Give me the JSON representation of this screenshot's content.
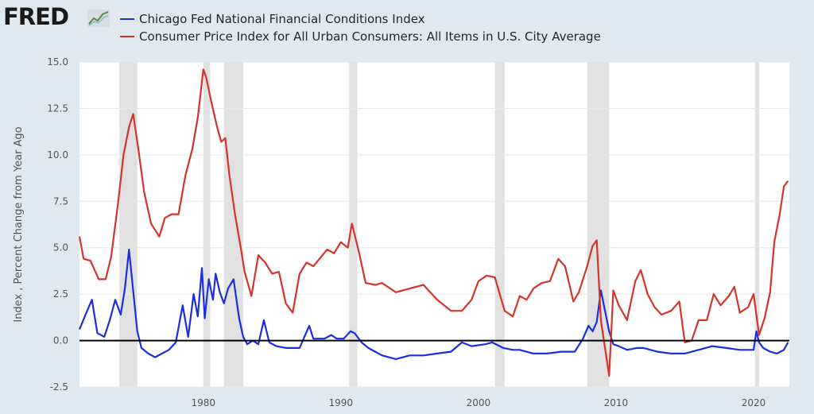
{
  "brand": {
    "logo_text": "FRED",
    "logo_mark_icon": "trend-chart-icon"
  },
  "colors": {
    "background": "#e1e9f0",
    "plot_background": "#ffffff",
    "recession_band": "#e1e1e1",
    "series_1": "#1b2fe0",
    "series_2": "#d4342a",
    "zero_line": "#000000"
  },
  "chart_data": {
    "type": "line",
    "title": "",
    "xlabel": "",
    "ylabel": "Index , Percent Change from Year Ago",
    "xlim": [
      1971,
      2022.6
    ],
    "ylim": [
      -2.5,
      15.0
    ],
    "y_ticks": [
      "15.0",
      "12.5",
      "10.0",
      "7.5",
      "5.0",
      "2.5",
      "0.0",
      "-2.5"
    ],
    "y_tick_values": [
      15,
      12.5,
      10,
      7.5,
      5,
      2.5,
      0,
      -2.5
    ],
    "x_ticks": [
      "1980",
      "1990",
      "2000",
      "2010",
      "2020"
    ],
    "x_tick_values": [
      1980,
      1990,
      2000,
      2010,
      2020
    ],
    "grid": "horizontal",
    "legend": "top-left",
    "reference_line": 0,
    "recessions": [
      [
        1973.9,
        1975.2
      ],
      [
        1980.0,
        1980.5
      ],
      [
        1981.5,
        1982.9
      ],
      [
        1990.6,
        1991.2
      ],
      [
        2001.2,
        2001.9
      ],
      [
        2007.9,
        2009.5
      ],
      [
        2020.1,
        2020.4
      ]
    ],
    "series": [
      {
        "name": "Chicago Fed National Financial Conditions Index",
        "color": "#1b2fe0",
        "x": [
          1971.0,
          1971.5,
          1971.9,
          1972.3,
          1972.8,
          1973.2,
          1973.6,
          1974.0,
          1974.3,
          1974.6,
          1974.9,
          1975.2,
          1975.5,
          1976.0,
          1976.5,
          1977.0,
          1977.5,
          1978.0,
          1978.5,
          1978.9,
          1979.3,
          1979.6,
          1979.9,
          1980.1,
          1980.4,
          1980.7,
          1980.9,
          1981.2,
          1981.5,
          1981.8,
          1982.2,
          1982.6,
          1982.9,
          1983.2,
          1983.6,
          1984.0,
          1984.4,
          1984.8,
          1985.3,
          1986.0,
          1987.0,
          1987.7,
          1988.0,
          1988.8,
          1989.3,
          1989.7,
          1990.2,
          1990.7,
          1991.0,
          1991.5,
          1992.0,
          1993.0,
          1994.0,
          1995.0,
          1996.0,
          1997.0,
          1998.0,
          1998.8,
          1999.5,
          2000.5,
          2001.0,
          2001.8,
          2002.5,
          2003.0,
          2004.0,
          2005.0,
          2006.0,
          2007.0,
          2007.6,
          2008.0,
          2008.3,
          2008.6,
          2008.9,
          2009.2,
          2009.5,
          2009.8,
          2010.2,
          2010.8,
          2011.5,
          2012.0,
          2013.0,
          2014.0,
          2015.0,
          2016.0,
          2017.0,
          2018.0,
          2019.0,
          2020.0,
          2020.2,
          2020.4,
          2020.7,
          2021.2,
          2021.7,
          2022.2,
          2022.5
        ],
        "values": [
          0.6,
          1.5,
          2.2,
          0.4,
          0.2,
          1.1,
          2.2,
          1.4,
          2.8,
          4.9,
          2.7,
          0.5,
          -0.4,
          -0.7,
          -0.9,
          -0.7,
          -0.5,
          -0.1,
          1.9,
          0.2,
          2.5,
          1.3,
          3.9,
          1.2,
          3.3,
          2.2,
          3.6,
          2.6,
          2.0,
          2.8,
          3.3,
          1.2,
          0.2,
          -0.2,
          0.0,
          -0.2,
          1.1,
          -0.1,
          -0.3,
          -0.4,
          -0.4,
          0.8,
          0.1,
          0.1,
          0.3,
          0.1,
          0.1,
          0.5,
          0.4,
          -0.1,
          -0.4,
          -0.8,
          -1.0,
          -0.8,
          -0.8,
          -0.7,
          -0.6,
          -0.1,
          -0.3,
          -0.2,
          -0.1,
          -0.4,
          -0.5,
          -0.5,
          -0.7,
          -0.7,
          -0.6,
          -0.6,
          0.1,
          0.8,
          0.5,
          1.0,
          2.7,
          1.6,
          0.5,
          -0.2,
          -0.3,
          -0.5,
          -0.4,
          -0.4,
          -0.6,
          -0.7,
          -0.7,
          -0.5,
          -0.3,
          -0.4,
          -0.5,
          -0.5,
          0.5,
          -0.1,
          -0.4,
          -0.6,
          -0.7,
          -0.5,
          -0.1
        ]
      },
      {
        "name": "Consumer Price Index for All Urban Consumers: All Items in U.S. City Average",
        "color": "#d4342a",
        "x": [
          1971.0,
          1971.3,
          1971.8,
          1972.4,
          1972.9,
          1973.3,
          1973.8,
          1974.2,
          1974.6,
          1974.9,
          1975.3,
          1975.7,
          1976.2,
          1976.8,
          1977.2,
          1977.7,
          1978.2,
          1978.7,
          1979.2,
          1979.6,
          1980.0,
          1980.2,
          1980.6,
          1981.0,
          1981.3,
          1981.6,
          1981.9,
          1982.3,
          1982.7,
          1983.0,
          1983.5,
          1984.0,
          1984.5,
          1985.0,
          1985.5,
          1986.0,
          1986.5,
          1987.0,
          1987.5,
          1988.0,
          1989.0,
          1989.5,
          1990.0,
          1990.5,
          1990.8,
          1991.3,
          1991.8,
          1992.5,
          1993.0,
          1994.0,
          1995.0,
          1996.0,
          1997.0,
          1998.0,
          1998.8,
          1999.5,
          2000.0,
          2000.6,
          2001.2,
          2001.9,
          2002.5,
          2003.0,
          2003.5,
          2004.0,
          2004.6,
          2005.2,
          2005.8,
          2006.3,
          2006.9,
          2007.3,
          2007.9,
          2008.3,
          2008.6,
          2008.9,
          2009.2,
          2009.5,
          2009.8,
          2010.2,
          2010.8,
          2011.4,
          2011.8,
          2012.3,
          2012.8,
          2013.3,
          2014.0,
          2014.6,
          2015.0,
          2015.5,
          2016.0,
          2016.6,
          2017.1,
          2017.6,
          2018.2,
          2018.6,
          2019.0,
          2019.6,
          2020.0,
          2020.4,
          2020.8,
          2021.2,
          2021.5,
          2021.9,
          2022.2,
          2022.5
        ],
        "values": [
          5.6,
          4.4,
          4.3,
          3.3,
          3.3,
          4.5,
          7.4,
          10.0,
          11.5,
          12.2,
          10.2,
          8.0,
          6.3,
          5.6,
          6.6,
          6.8,
          6.8,
          8.9,
          10.3,
          12.0,
          14.6,
          14.2,
          12.8,
          11.5,
          10.7,
          10.9,
          8.9,
          6.8,
          5.1,
          3.7,
          2.4,
          4.6,
          4.2,
          3.6,
          3.7,
          2.0,
          1.5,
          3.6,
          4.2,
          4.0,
          4.9,
          4.7,
          5.3,
          5.0,
          6.3,
          4.8,
          3.1,
          3.0,
          3.1,
          2.6,
          2.8,
          3.0,
          2.2,
          1.6,
          1.6,
          2.2,
          3.2,
          3.5,
          3.4,
          1.6,
          1.3,
          2.4,
          2.2,
          2.8,
          3.1,
          3.2,
          4.4,
          4.0,
          2.1,
          2.6,
          4.0,
          5.1,
          5.4,
          1.1,
          -0.4,
          -1.9,
          2.7,
          1.9,
          1.1,
          3.2,
          3.8,
          2.5,
          1.8,
          1.4,
          1.6,
          2.1,
          -0.1,
          0.0,
          1.1,
          1.1,
          2.5,
          1.9,
          2.4,
          2.9,
          1.5,
          1.8,
          2.5,
          0.3,
          1.2,
          2.6,
          5.3,
          6.8,
          8.3,
          8.6
        ]
      }
    ]
  }
}
